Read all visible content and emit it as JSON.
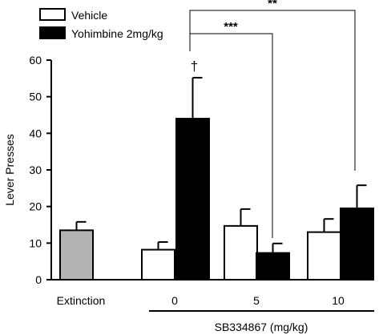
{
  "chart_data": {
    "type": "bar",
    "ylabel": "Lever Presses",
    "xlabel": "SB334867 (mg/kg)",
    "ylim": [
      0,
      60
    ],
    "yticks": [
      0,
      10,
      20,
      30,
      40,
      50,
      60
    ],
    "legend": {
      "placement": "top-left",
      "entries": [
        {
          "label": "Vehicle",
          "color": "#ffffff"
        },
        {
          "label": "Yohimbine 2mg/kg",
          "color": "#000000"
        }
      ]
    },
    "groups": [
      {
        "label": "Extinction",
        "bars": [
          {
            "series": "Extinction",
            "value": 13.5,
            "error": 2.3,
            "color": "#b3b3b3"
          }
        ]
      },
      {
        "label": "0",
        "bars": [
          {
            "series": "Vehicle",
            "value": 8.2,
            "error": 2.1,
            "color": "#ffffff"
          },
          {
            "series": "Yohimbine 2mg/kg",
            "value": 44,
            "error": 11.2,
            "color": "#000000"
          }
        ]
      },
      {
        "label": "5",
        "bars": [
          {
            "series": "Vehicle",
            "value": 14.7,
            "error": 4.6,
            "color": "#ffffff"
          },
          {
            "series": "Yohimbine 2mg/kg",
            "value": 7.3,
            "error": 2.6,
            "color": "#000000"
          }
        ]
      },
      {
        "label": "10",
        "bars": [
          {
            "series": "Vehicle",
            "value": 13,
            "error": 3.6,
            "color": "#ffffff"
          },
          {
            "series": "Yohimbine 2mg/kg",
            "value": 19.5,
            "error": 6.3,
            "color": "#000000"
          }
        ]
      }
    ],
    "annotations": {
      "dagger": "†",
      "comparisons": [
        {
          "label": "***",
          "from": "0",
          "to": "5"
        },
        {
          "label": "**",
          "from": "0",
          "to": "10"
        }
      ]
    }
  }
}
